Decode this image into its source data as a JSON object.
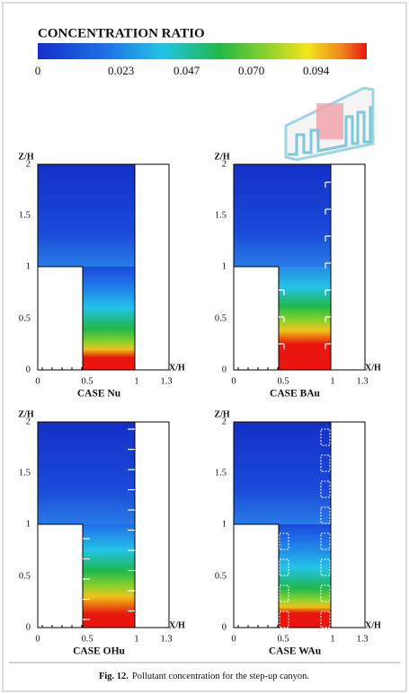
{
  "colorbar": {
    "title": "CONCENTRATION RATIO",
    "ticks": [
      "0",
      "0.023",
      "0.047",
      "0.070",
      "0.094"
    ]
  },
  "panels": [
    {
      "title": "CASE Nu",
      "y_axis_label": "Z/H",
      "x_axis_label": "X/H",
      "yticks": [
        "2",
        "1.5",
        "1",
        "0.5",
        "0"
      ],
      "xticks": [
        "0",
        "0.5",
        "1",
        "1.3"
      ]
    },
    {
      "title": "CASE BAu",
      "y_axis_label": "Z/H",
      "x_axis_label": "X/H",
      "yticks": [
        "2",
        "1.5",
        "1",
        "0.5",
        "0"
      ],
      "xticks": [
        "0",
        "0.5",
        "1",
        "1.3"
      ]
    },
    {
      "title": "CASE OHu",
      "y_axis_label": "Z/H",
      "x_axis_label": "X/H",
      "yticks": [
        "2",
        "1.5",
        "1",
        "0.5",
        "0"
      ],
      "xticks": [
        "0",
        "0.5",
        "1",
        "1.3"
      ]
    },
    {
      "title": "CASE WAu",
      "y_axis_label": "Z/H",
      "x_axis_label": "X/H",
      "yticks": [
        "2",
        "1.5",
        "1",
        "0.5",
        "0"
      ],
      "xticks": [
        "0",
        "0.5",
        "1",
        "1.3"
      ]
    }
  ],
  "caption": {
    "label": "Fig. 12.",
    "text": "Pollutant concentration for the step-up canyon."
  }
}
